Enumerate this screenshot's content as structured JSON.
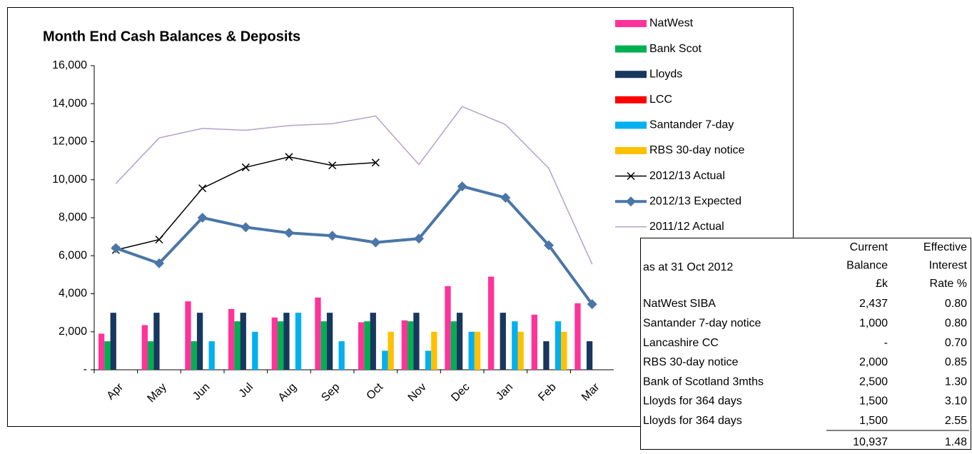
{
  "chart_data": {
    "type": "bar",
    "title": "Month End Cash Balances & Deposits",
    "categories": [
      "Apr",
      "May",
      "Jun",
      "Jul",
      "Aug",
      "Sep",
      "Oct",
      "Nov",
      "Dec",
      "Jan",
      "Feb",
      "Mar"
    ],
    "ylim": [
      0,
      16000
    ],
    "yticks": [
      {
        "value": 0,
        "label": "-"
      },
      {
        "value": 2000,
        "label": "2,000"
      },
      {
        "value": 4000,
        "label": "4,000"
      },
      {
        "value": 6000,
        "label": "6,000"
      },
      {
        "value": 8000,
        "label": "8,000"
      },
      {
        "value": 10000,
        "label": "10,000"
      },
      {
        "value": 12000,
        "label": "12,000"
      },
      {
        "value": 14000,
        "label": "14,000"
      },
      {
        "value": 16000,
        "label": "16,000"
      }
    ],
    "grid": false,
    "legend": "right",
    "series": [
      {
        "name": "NatWest",
        "type": "bar",
        "color": "#ff3399",
        "values": [
          1900,
          2350,
          3600,
          3200,
          2750,
          3800,
          2500,
          2600,
          4400,
          4900,
          2900,
          3500
        ]
      },
      {
        "name": "Bank Scot",
        "type": "bar",
        "color": "#00b050",
        "values": [
          1500,
          1500,
          1500,
          2550,
          2550,
          2550,
          2550,
          2550,
          2550,
          0,
          0,
          0
        ]
      },
      {
        "name": "Lloyds",
        "type": "bar",
        "color": "#17375e",
        "values": [
          3000,
          3000,
          3000,
          3000,
          3000,
          3000,
          3000,
          3000,
          3000,
          3000,
          1500,
          1500
        ]
      },
      {
        "name": "LCC",
        "type": "bar",
        "color": "#ff0000",
        "values": [
          0,
          0,
          0,
          0,
          0,
          0,
          0,
          0,
          0,
          0,
          0,
          0
        ]
      },
      {
        "name": "Santander 7-day",
        "type": "bar",
        "color": "#00b0f0",
        "values": [
          0,
          0,
          1500,
          2000,
          3000,
          1500,
          1000,
          1000,
          2000,
          2550,
          2550,
          0
        ]
      },
      {
        "name": "RBS 30-day notice",
        "type": "bar",
        "color": "#ffc000",
        "values": [
          0,
          0,
          0,
          0,
          0,
          0,
          2000,
          2000,
          2000,
          2000,
          2000,
          0
        ]
      },
      {
        "name": "2012/13 Actual",
        "type": "line",
        "marker": "x",
        "width": 1.5,
        "color": "#000000",
        "values": [
          6300,
          6850,
          9550,
          10650,
          11200,
          10750,
          10900,
          null,
          null,
          null,
          null,
          null
        ]
      },
      {
        "name": "2012/13 Expected",
        "type": "line",
        "marker": "diamond",
        "width": 4,
        "color": "#4a76a8",
        "values": [
          6400,
          5600,
          8000,
          7500,
          7200,
          7050,
          6700,
          6900,
          9650,
          9050,
          6550,
          3450
        ]
      },
      {
        "name": "2011/12 Actual",
        "type": "line",
        "marker": "none",
        "width": 1.5,
        "color": "#b3a2c7",
        "values": [
          9800,
          12200,
          12700,
          12600,
          12850,
          12950,
          13350,
          10800,
          13850,
          12900,
          10600,
          5550
        ]
      }
    ]
  },
  "table": {
    "header": [
      [
        "as at 31 Oct 2012"
      ],
      [
        "Current",
        "Balance",
        "£k"
      ],
      [
        "Effective",
        "Interest",
        "Rate %"
      ]
    ],
    "rows": [
      [
        "NatWest SIBA",
        "2,437",
        "0.80"
      ],
      [
        "Santander 7-day notice",
        "1,000",
        "0.80"
      ],
      [
        "Lancashire CC",
        "-",
        "0.70"
      ],
      [
        "RBS 30-day notice",
        "2,000",
        "0.85"
      ],
      [
        "Bank of Scotland 3mths",
        "2,500",
        "1.30"
      ],
      [
        "Lloyds for 364 days",
        "1,500",
        "3.10"
      ],
      [
        "Lloyds for 364 days",
        "1,500",
        "2.55"
      ]
    ],
    "total": [
      "10,937",
      "1.48"
    ]
  }
}
